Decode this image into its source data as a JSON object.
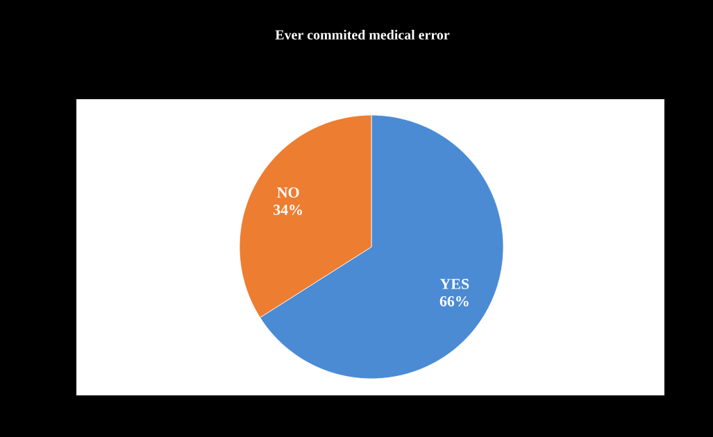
{
  "chart_data": {
    "type": "pie",
    "title": "Ever commited medical error",
    "categories": [
      "YES",
      "NO"
    ],
    "values": [
      66,
      34
    ],
    "value_labels": [
      "66%",
      "34%"
    ],
    "colors": [
      "#4a8bd4",
      "#ed7d31"
    ]
  }
}
